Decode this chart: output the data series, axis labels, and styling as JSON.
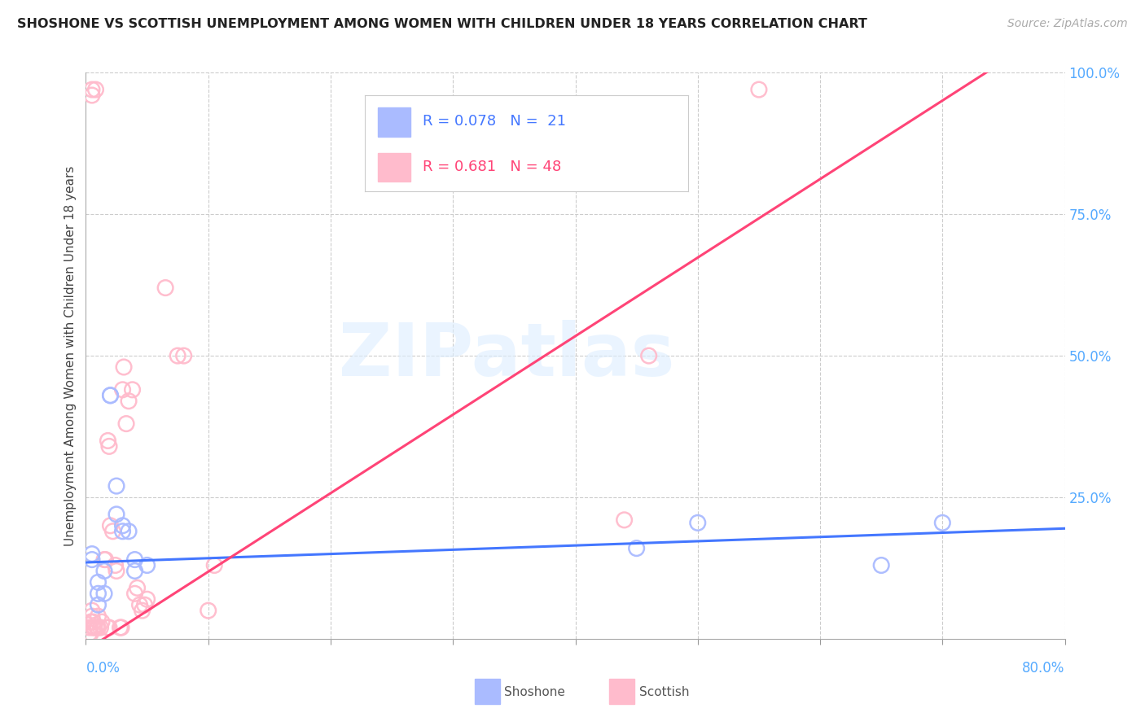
{
  "title": "SHOSHONE VS SCOTTISH UNEMPLOYMENT AMONG WOMEN WITH CHILDREN UNDER 18 YEARS CORRELATION CHART",
  "source": "Source: ZipAtlas.com",
  "ylabel": "Unemployment Among Women with Children Under 18 years",
  "shoshone_color": "#aabbff",
  "scottish_color": "#ffbbcc",
  "trend_shoshone_color": "#4477ff",
  "trend_scottish_color": "#ff4477",
  "watermark_color": "#ddeeff",
  "xlim": [
    0.0,
    0.8
  ],
  "ylim": [
    0.0,
    1.0
  ],
  "yticks_right": [
    0.25,
    0.5,
    0.75,
    1.0
  ],
  "ytick_labels_right": [
    "25.0%",
    "50.0%",
    "75.0%",
    "100.0%"
  ],
  "xticks": [
    0.0,
    0.1,
    0.2,
    0.3,
    0.4,
    0.5,
    0.6,
    0.7,
    0.8
  ],
  "shoshone_trend_x": [
    0.0,
    0.8
  ],
  "shoshone_trend_y": [
    0.135,
    0.195
  ],
  "scottish_trend_x": [
    0.0,
    0.75
  ],
  "scottish_trend_y": [
    -0.02,
    1.02
  ],
  "shoshone_points_x": [
    0.005,
    0.01,
    0.01,
    0.01,
    0.015,
    0.015,
    0.02,
    0.02,
    0.025,
    0.025,
    0.03,
    0.03,
    0.035,
    0.04,
    0.04,
    0.05,
    0.45,
    0.5,
    0.65,
    0.7,
    0.005
  ],
  "shoshone_points_y": [
    0.15,
    0.1,
    0.08,
    0.06,
    0.12,
    0.08,
    0.43,
    0.43,
    0.27,
    0.22,
    0.2,
    0.19,
    0.19,
    0.14,
    0.12,
    0.13,
    0.16,
    0.205,
    0.13,
    0.205,
    0.14
  ],
  "scottish_points_x": [
    0.003,
    0.004,
    0.005,
    0.005,
    0.005,
    0.005,
    0.006,
    0.006,
    0.007,
    0.008,
    0.009,
    0.01,
    0.01,
    0.012,
    0.013,
    0.015,
    0.016,
    0.018,
    0.019,
    0.02,
    0.022,
    0.024,
    0.025,
    0.03,
    0.031,
    0.033,
    0.035,
    0.038,
    0.04,
    0.042,
    0.044,
    0.046,
    0.048,
    0.05,
    0.065,
    0.075,
    0.08,
    0.1,
    0.105,
    0.44,
    0.46,
    0.55,
    0.003,
    0.004,
    0.018,
    0.019,
    0.028,
    0.029
  ],
  "scottish_points_y": [
    0.02,
    0.03,
    0.04,
    0.05,
    0.96,
    0.97,
    0.02,
    0.03,
    0.02,
    0.97,
    0.02,
    0.02,
    0.04,
    0.02,
    0.03,
    0.14,
    0.14,
    0.35,
    0.34,
    0.2,
    0.19,
    0.13,
    0.12,
    0.44,
    0.48,
    0.38,
    0.42,
    0.44,
    0.08,
    0.09,
    0.06,
    0.05,
    0.06,
    0.07,
    0.62,
    0.5,
    0.5,
    0.05,
    0.13,
    0.21,
    0.5,
    0.97,
    0.01,
    0.01,
    0.02,
    0.02,
    0.02,
    0.02
  ],
  "legend_r_sh": "0.078",
  "legend_n_sh": " 21",
  "legend_r_sc": "0.681",
  "legend_n_sc": "48"
}
